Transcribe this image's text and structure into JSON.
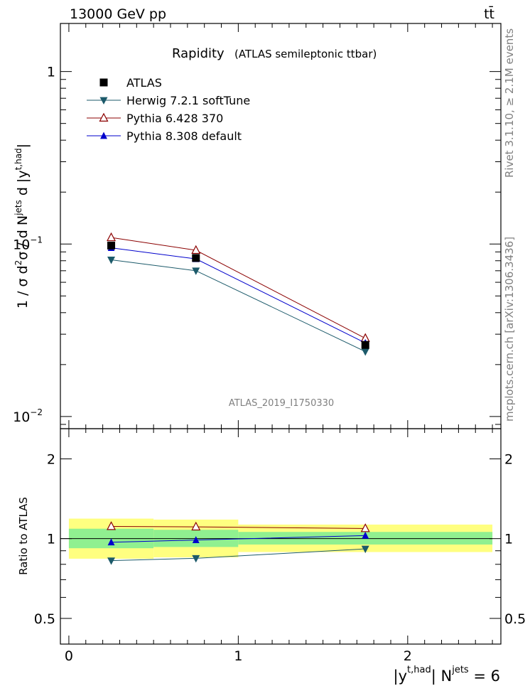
{
  "header": {
    "energy_label": "13000 GeV pp",
    "process_label": "tt̄"
  },
  "side_labels": {
    "rivet": "Rivet 3.1.10, ≥ 2.1M events",
    "mcplots": "mcplots.cern.ch [arXiv:1306.3436]"
  },
  "chart_data": [
    {
      "type": "line",
      "title": "Rapidity",
      "subtitle": "(ATLAS semileptonic ttbar)",
      "analysis_id": "ATLAS_2019_I1750330",
      "ylabel": "1 / σ d²σ / d N^jets d |y^t,had|",
      "y_scale": "log",
      "ylim": [
        0.0085,
        1.9
      ],
      "xlim": [
        -0.05,
        2.55
      ],
      "x_tick_labels": [
        "0",
        "1",
        "2"
      ],
      "y_tick_labels": [
        "10⁻²",
        "10⁻¹",
        "1"
      ],
      "legend_position": "top-left",
      "x": [
        0.25,
        0.75,
        1.75
      ],
      "series": [
        {
          "name": "ATLAS",
          "marker": "square",
          "color": "#000000",
          "values": [
            0.098,
            0.083,
            0.026
          ]
        },
        {
          "name": "Herwig 7.2.1 softTune",
          "marker": "triangle-down",
          "color": "#1c5a6a",
          "values": [
            0.081,
            0.07,
            0.0238
          ]
        },
        {
          "name": "Pythia 6.428 370",
          "marker": "triangle-open",
          "color": "#8b0000",
          "values": [
            0.109,
            0.092,
            0.0284
          ]
        },
        {
          "name": "Pythia 8.308 default",
          "marker": "triangle-up",
          "color": "#0000cc",
          "values": [
            0.095,
            0.082,
            0.0267
          ]
        }
      ]
    },
    {
      "type": "line",
      "ylabel": "Ratio to ATLAS",
      "xlabel": "|y^t,had| N^jets = 6",
      "y_scale": "log",
      "ylim": [
        0.4,
        2.6
      ],
      "xlim": [
        -0.05,
        2.55
      ],
      "x_tick_labels": [
        "0",
        "1",
        "2"
      ],
      "y_tick_labels": [
        "0.5",
        "1",
        "2"
      ],
      "bins": [
        [
          0,
          0.5
        ],
        [
          0.5,
          1.0
        ],
        [
          1.0,
          2.5
        ]
      ],
      "band_outer": [
        [
          0.84,
          1.19
        ],
        [
          0.85,
          1.18
        ],
        [
          0.89,
          1.13
        ]
      ],
      "band_inner": [
        [
          0.92,
          1.09
        ],
        [
          0.93,
          1.08
        ],
        [
          0.95,
          1.06
        ]
      ],
      "band_colors": {
        "outer": "#ffff80",
        "inner": "#90f090"
      },
      "x": [
        0.25,
        0.75,
        1.75
      ],
      "series": [
        {
          "name": "Herwig 7.2.1 softTune",
          "marker": "triangle-down",
          "color": "#1c5a6a",
          "values": [
            0.826,
            0.843,
            0.915
          ]
        },
        {
          "name": "Pythia 6.428 370",
          "marker": "triangle-open",
          "color": "#8b0000",
          "values": [
            1.112,
            1.108,
            1.092
          ]
        },
        {
          "name": "Pythia 8.308 default",
          "marker": "triangle-up",
          "color": "#0000cc",
          "values": [
            0.969,
            0.988,
            1.027
          ]
        }
      ]
    }
  ]
}
